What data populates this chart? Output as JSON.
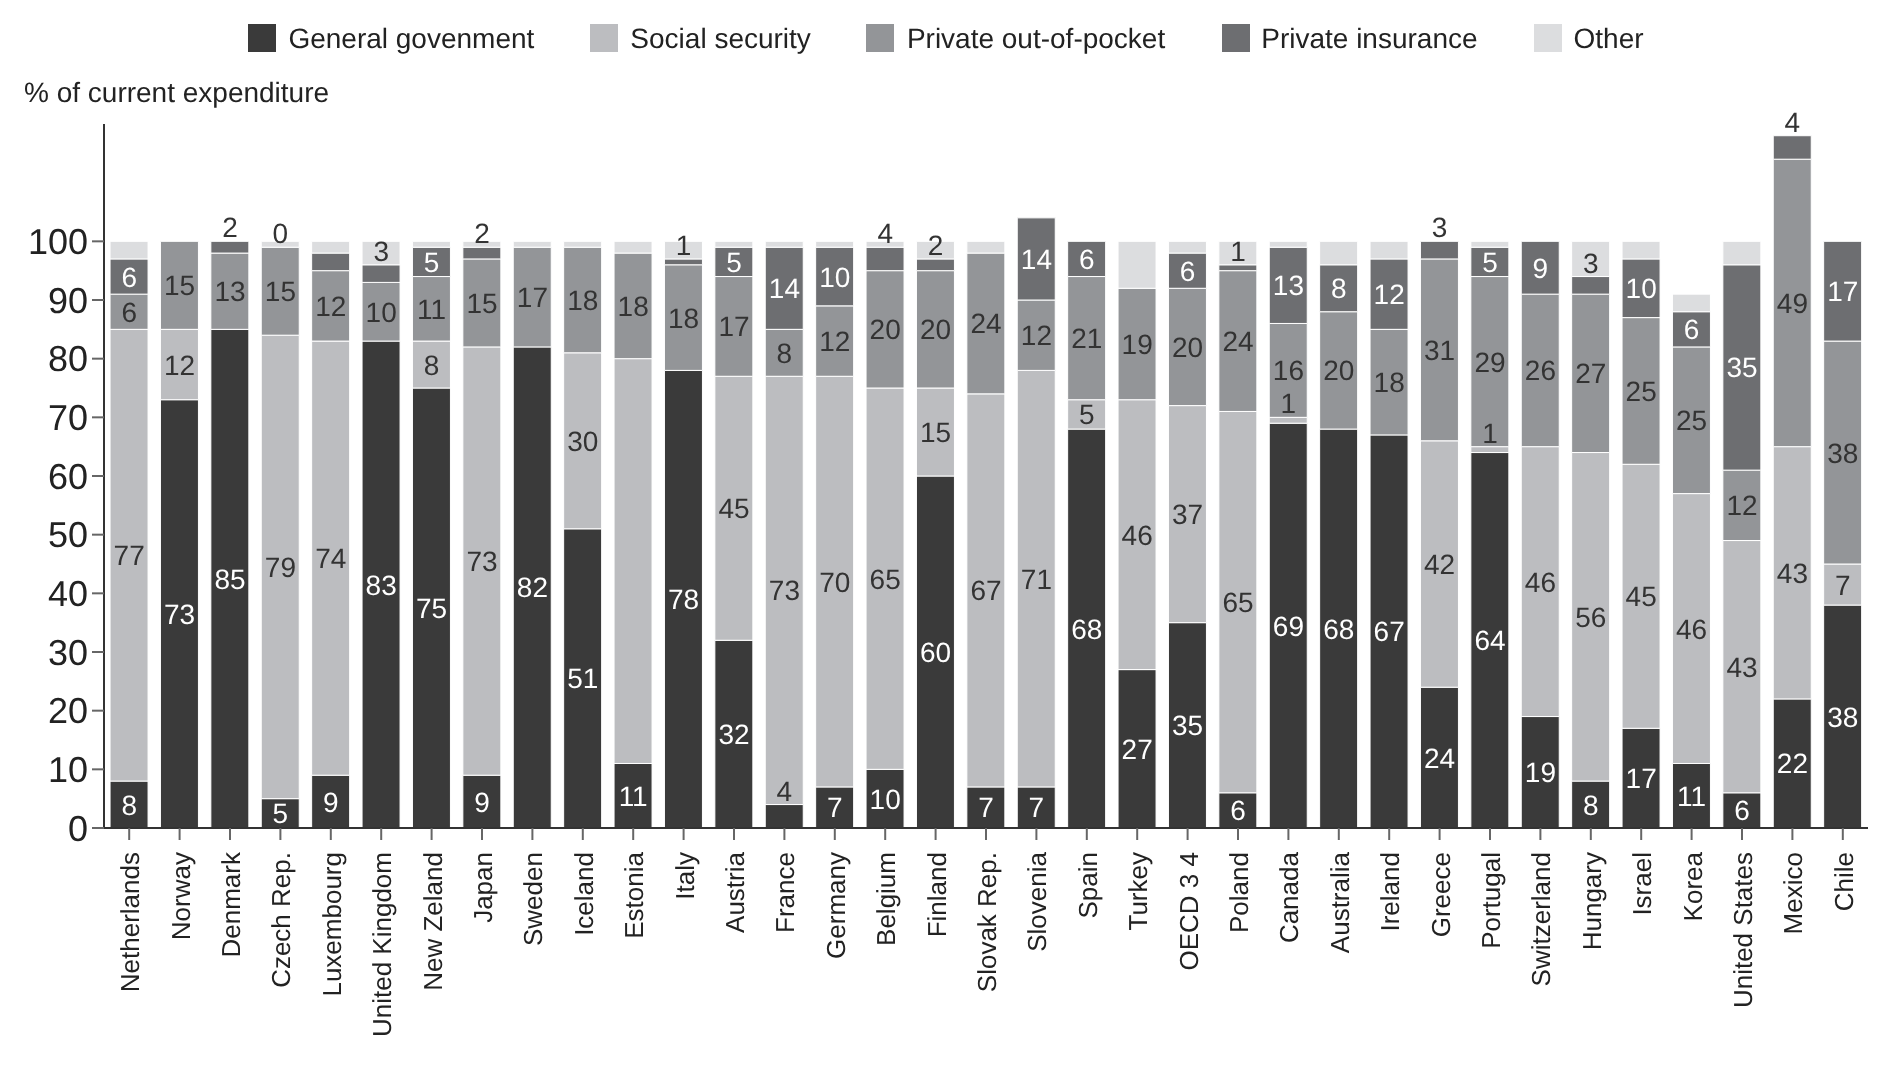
{
  "chart_data": {
    "type": "bar",
    "stacked": true,
    "ylabel": "% of current expenditure",
    "categories": [
      "Netherlands",
      "Norway",
      "Denmark",
      "Czech Rep.",
      "Luxembourg",
      "United Kingdom",
      "New Zeland",
      "Japan",
      "Sweden",
      "Iceland",
      "Estonia",
      "Italy",
      "Austria",
      "France",
      "Germany",
      "Belgium",
      "Finland",
      "Slovak Rep.",
      "Slovenia",
      "Spain",
      "Turkey",
      "OECD 3 4",
      "Poland",
      "Canada",
      "Australia",
      "Ireland",
      "Greece",
      "Portugal",
      "Switzerland",
      "Hungary",
      "Israel",
      "Korea",
      "United States",
      "Mexico",
      "Chile"
    ],
    "series": [
      {
        "name": "General govenment",
        "color": "#3a3a3a",
        "values": [
          8,
          73,
          85,
          5,
          9,
          83,
          75,
          9,
          82,
          51,
          11,
          78,
          32,
          4,
          7,
          10,
          60,
          7,
          7,
          68,
          27,
          35,
          6,
          69,
          68,
          67,
          24,
          64,
          19,
          8,
          17,
          11,
          6,
          22,
          38
        ],
        "value_labels": [
          "8",
          "73",
          "85",
          "5",
          "9",
          "83",
          "75",
          "9",
          "82",
          "51",
          "11",
          "78",
          "32",
          "4",
          "7",
          "10",
          "60",
          "7",
          "7",
          "68",
          "27",
          "35",
          "6",
          "69",
          "68",
          "67",
          "24",
          "64",
          "19",
          "8",
          "17",
          "11",
          "6",
          "22",
          "38"
        ]
      },
      {
        "name": "Social security",
        "color": "#bcbdc0",
        "values": [
          77,
          12,
          0,
          79,
          74,
          0,
          8,
          73,
          0,
          30,
          69,
          0,
          45,
          73,
          70,
          65,
          15,
          67,
          71,
          5,
          46,
          37,
          65,
          1,
          0,
          0,
          42,
          1,
          46,
          56,
          45,
          46,
          43,
          43,
          7
        ],
        "value_labels": [
          "77",
          "12",
          null,
          "79",
          "74",
          null,
          "8",
          "73",
          null,
          "30",
          null,
          null,
          "45",
          "73",
          "70",
          "65",
          "15",
          "67",
          "71",
          "5",
          "46",
          "37",
          "65",
          "1",
          null,
          null,
          "42",
          "1",
          "46",
          "56",
          "45",
          "46",
          "43",
          "43",
          "7"
        ]
      },
      {
        "name": "Private out-of-pocket",
        "color": "#939598",
        "values": [
          6,
          15,
          13,
          15,
          12,
          10,
          11,
          15,
          17,
          18,
          18,
          18,
          17,
          8,
          12,
          20,
          20,
          24,
          12,
          21,
          19,
          20,
          24,
          16,
          20,
          18,
          31,
          29,
          26,
          27,
          25,
          25,
          12,
          49,
          38
        ],
        "value_labels": [
          "6",
          "15",
          "13",
          "15",
          "12",
          "10",
          "11",
          "15",
          "17",
          "18",
          "18",
          "18",
          "17",
          "8",
          "12",
          "20",
          "20",
          "24",
          "12",
          "21",
          "19",
          "20",
          "24",
          "16",
          "20",
          "18",
          "31",
          "29",
          "26",
          "27",
          "25",
          "25",
          "12",
          "49",
          "38"
        ]
      },
      {
        "name": "Private insurance",
        "color": "#6d6e71",
        "values": [
          6,
          0,
          2,
          0,
          3,
          3,
          5,
          2,
          0,
          0,
          0,
          1,
          5,
          14,
          10,
          4,
          2,
          0,
          14,
          6,
          0,
          6,
          1,
          13,
          8,
          12,
          3,
          5,
          9,
          3,
          10,
          6,
          35,
          4,
          17
        ],
        "value_labels": [
          "6",
          null,
          "2",
          "0",
          null,
          "3",
          "5",
          "2",
          null,
          null,
          null,
          "1",
          "5",
          "14",
          "10",
          "4",
          "2",
          null,
          "14",
          "6",
          null,
          "6",
          "1",
          "13",
          "8",
          "12",
          "3",
          "5",
          "9",
          "3",
          "10",
          "6",
          "35",
          "4",
          "17"
        ]
      },
      {
        "name": "Other",
        "color": "#dcdddf",
        "values": [
          3,
          0,
          0,
          1,
          2,
          4,
          1,
          1,
          1,
          1,
          2,
          3,
          1,
          1,
          1,
          1,
          3,
          2,
          0,
          0,
          8,
          2,
          4,
          1,
          4,
          3,
          0,
          1,
          0,
          6,
          3,
          3,
          4,
          0,
          0
        ]
      }
    ],
    "ylim": [
      0,
      120
    ],
    "yticks": [
      0,
      10,
      20,
      30,
      40,
      50,
      60,
      70,
      80,
      90,
      100
    ],
    "legend": "top",
    "grid": false
  }
}
